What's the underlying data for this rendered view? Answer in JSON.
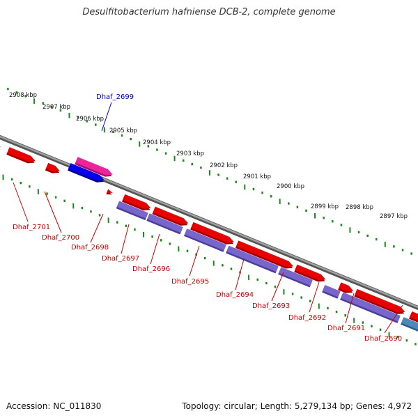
{
  "title": "Desulfitobacterium hafniense DCB-2, complete genome",
  "footer": {
    "accession": "Accession: NC_011830",
    "topology": "Topology: circular; Length: 5,279,134 bp; Genes: 4,972"
  },
  "colors": {
    "forward_gene": "#e80000",
    "reverse_gene": "#7766cc",
    "highlight_gene": "#ee2299",
    "highlight_reverse": "#0000ee",
    "rna_gene": "#4d88bb",
    "label_text": "#cc0000",
    "highlight_label": "#0000cc",
    "ticks": "#1a8a1a",
    "backbone": "#777777"
  },
  "ruler": {
    "unit": "kbp",
    "labels": [
      "2908 kbp",
      "2907 kbp",
      "2906 kbp",
      "2905 kbp",
      "2904 kbp",
      "2903 kbp",
      "2902 kbp",
      "2901 kbp",
      "2900 kbp",
      "2899 kbp",
      "2898 kbp",
      "2897 kbp"
    ]
  },
  "genes": [
    {
      "name": "Dhaf_2701",
      "strand": "+",
      "type": "gene"
    },
    {
      "name": "Dhaf_2700",
      "strand": "+",
      "type": "gene"
    },
    {
      "name": "Dhaf_2699",
      "strand": "+",
      "type": "highlighted"
    },
    {
      "name": "Dhaf_2698",
      "strand": "+",
      "type": "gene"
    },
    {
      "name": "Dhaf_2697",
      "strand": "-",
      "type": "gene"
    },
    {
      "name": "Dhaf_2696",
      "strand": "+",
      "type": "gene"
    },
    {
      "name": "Dhaf_2695",
      "strand": "+",
      "type": "gene"
    },
    {
      "name": "Dhaf_2694",
      "strand": "+",
      "type": "gene"
    },
    {
      "name": "Dhaf_2693",
      "strand": "+",
      "type": "gene"
    },
    {
      "name": "Dhaf_2692",
      "strand": "-",
      "type": "gene"
    },
    {
      "name": "Dhaf_2691",
      "strand": "+",
      "type": "gene"
    },
    {
      "name": "Dhaf_2690",
      "strand": "+",
      "type": "gene"
    }
  ]
}
